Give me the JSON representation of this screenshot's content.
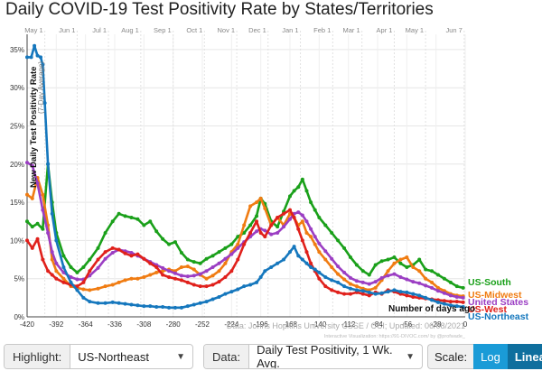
{
  "title": "Daily COVID-19 Test Positivity Rate by States/Territories",
  "chart_data": {
    "type": "line",
    "ylabel": "New Daily Test Positivity Rate",
    "ylabel_sub": "(7-Day Average)",
    "xlabel": "Number of days ago",
    "xlim": [
      -420,
      0
    ],
    "ylim": [
      0,
      37
    ],
    "grid": true,
    "x_ticks": [
      -420,
      -392,
      -364,
      -336,
      -308,
      -280,
      -252,
      -224,
      -196,
      -168,
      -140,
      -112,
      -84,
      -56,
      -28,
      0
    ],
    "x_tick_labels": [
      "-420",
      "-392",
      "-364",
      "-336",
      "-308",
      "-280",
      "-252",
      "-224",
      "-196",
      "-168",
      "-140",
      "-112",
      "-84",
      "-56",
      "-28",
      "0"
    ],
    "y_ticks": [
      0,
      5,
      10,
      15,
      20,
      25,
      30,
      35
    ],
    "y_tick_labels": [
      "0%",
      "5%",
      "10%",
      "15%",
      "20%",
      "25%",
      "30%",
      "35%"
    ],
    "month_markers": [
      {
        "label": "May 1",
        "x": -403
      },
      {
        "label": "Jun 1",
        "x": -372
      },
      {
        "label": "Jul 1",
        "x": -342
      },
      {
        "label": "Aug 1",
        "x": -311
      },
      {
        "label": "Sep 1",
        "x": -280
      },
      {
        "label": "Oct 1",
        "x": -250
      },
      {
        "label": "Nov 1",
        "x": -219
      },
      {
        "label": "Dec 1",
        "x": -189
      },
      {
        "label": "Jan 1",
        "x": -158
      },
      {
        "label": "Feb 1",
        "x": -127
      },
      {
        "label": "Mar 1",
        "x": -99
      },
      {
        "label": "Apr 1",
        "x": -68
      },
      {
        "label": "May 1",
        "x": -38
      },
      {
        "label": "Jun 7",
        "x": -1
      }
    ],
    "series": [
      {
        "name": "US-South",
        "color": "#1aa01a",
        "x": [
          -420,
          -415,
          -410,
          -405,
          -400,
          -396,
          -392,
          -385,
          -378,
          -372,
          -366,
          -360,
          -352,
          -345,
          -338,
          -332,
          -326,
          -320,
          -314,
          -308,
          -302,
          -296,
          -290,
          -284,
          -278,
          -272,
          -266,
          -260,
          -254,
          -248,
          -242,
          -236,
          -230,
          -224,
          -218,
          -212,
          -206,
          -200,
          -196,
          -192,
          -186,
          -180,
          -174,
          -168,
          -164,
          -160,
          -156,
          -152,
          -148,
          -144,
          -140,
          -134,
          -128,
          -122,
          -116,
          -110,
          -104,
          -98,
          -92,
          -86,
          -80,
          -74,
          -68,
          -62,
          -56,
          -50,
          -44,
          -38,
          -32,
          -26,
          -20,
          -14,
          -8,
          -2
        ],
        "y": [
          12.5,
          11.8,
          12.2,
          11.5,
          20.0,
          15.0,
          11.0,
          8.0,
          6.5,
          5.8,
          6.5,
          7.5,
          9.0,
          11.0,
          12.5,
          13.5,
          13.2,
          13.0,
          12.8,
          12.0,
          12.5,
          11.2,
          10.2,
          9.5,
          9.8,
          8.4,
          7.5,
          7.2,
          7.0,
          7.6,
          8.0,
          8.5,
          9.0,
          9.5,
          10.5,
          11.0,
          12.0,
          13.2,
          15.5,
          14.8,
          12.5,
          11.8,
          13.8,
          15.8,
          16.5,
          17.0,
          18.0,
          16.5,
          15.0,
          14.0,
          13.0,
          12.0,
          11.0,
          10.0,
          9.0,
          7.8,
          6.8,
          6.0,
          5.5,
          6.8,
          7.3,
          7.5,
          7.8,
          7.0,
          6.5,
          6.8,
          7.5,
          6.2,
          6.0,
          5.5,
          5.0,
          4.5,
          4.0,
          3.8
        ]
      },
      {
        "name": "US-Midwest",
        "color": "#f07c12",
        "x": [
          -420,
          -415,
          -410,
          -405,
          -400,
          -396,
          -392,
          -385,
          -378,
          -372,
          -366,
          -360,
          -352,
          -345,
          -338,
          -332,
          -326,
          -320,
          -314,
          -308,
          -302,
          -296,
          -290,
          -284,
          -278,
          -272,
          -266,
          -260,
          -254,
          -248,
          -242,
          -236,
          -230,
          -224,
          -218,
          -212,
          -206,
          -200,
          -196,
          -192,
          -186,
          -180,
          -174,
          -168,
          -164,
          -160,
          -156,
          -152,
          -148,
          -144,
          -140,
          -134,
          -128,
          -122,
          -116,
          -110,
          -104,
          -98,
          -92,
          -86,
          -80,
          -74,
          -68,
          -62,
          -56,
          -50,
          -44,
          -38,
          -32,
          -26,
          -20,
          -14,
          -8,
          -2
        ],
        "y": [
          16.0,
          15.5,
          18.2,
          16.0,
          12.0,
          7.5,
          6.0,
          5.0,
          4.0,
          3.8,
          3.6,
          3.5,
          3.7,
          4.0,
          4.2,
          4.5,
          4.8,
          5.0,
          5.0,
          5.2,
          5.5,
          5.8,
          6.0,
          6.2,
          6.0,
          6.5,
          6.6,
          6.2,
          5.5,
          5.0,
          5.4,
          6.0,
          7.0,
          8.5,
          9.5,
          12.0,
          14.5,
          15.0,
          15.5,
          14.2,
          12.0,
          13.0,
          12.0,
          13.5,
          13.0,
          12.0,
          12.5,
          11.0,
          10.5,
          9.5,
          8.5,
          7.5,
          6.5,
          5.6,
          4.9,
          4.3,
          4.0,
          3.7,
          3.5,
          3.8,
          4.8,
          6.0,
          7.0,
          7.5,
          7.8,
          6.5,
          6.0,
          5.0,
          4.5,
          3.8,
          3.4,
          3.0,
          2.8,
          2.7
        ]
      },
      {
        "name": "United States",
        "color": "#9b3ec3",
        "x": [
          -420,
          -415,
          -410,
          -405,
          -400,
          -396,
          -392,
          -385,
          -378,
          -372,
          -366,
          -360,
          -352,
          -345,
          -338,
          -332,
          -326,
          -320,
          -314,
          -308,
          -302,
          -296,
          -290,
          -284,
          -278,
          -272,
          -266,
          -260,
          -254,
          -248,
          -242,
          -236,
          -230,
          -224,
          -218,
          -212,
          -206,
          -200,
          -196,
          -192,
          -186,
          -180,
          -174,
          -168,
          -164,
          -160,
          -156,
          -152,
          -148,
          -144,
          -140,
          -134,
          -128,
          -122,
          -116,
          -110,
          -104,
          -98,
          -92,
          -86,
          -80,
          -74,
          -68,
          -62,
          -56,
          -50,
          -44,
          -38,
          -32,
          -26,
          -20,
          -14,
          -8,
          -2
        ],
        "y": [
          20.2,
          19.8,
          17.5,
          14.0,
          11.0,
          8.5,
          7.0,
          5.8,
          5.2,
          4.9,
          4.9,
          5.4,
          6.4,
          7.6,
          8.4,
          8.8,
          8.6,
          8.4,
          8.0,
          7.6,
          7.2,
          6.8,
          6.4,
          6.0,
          5.7,
          5.4,
          5.3,
          5.4,
          5.6,
          6.0,
          6.5,
          7.0,
          7.6,
          8.2,
          9.0,
          9.8,
          10.5,
          11.2,
          11.5,
          11.3,
          10.8,
          11.0,
          11.8,
          12.8,
          13.5,
          13.7,
          13.3,
          12.5,
          11.5,
          10.5,
          9.6,
          8.6,
          7.6,
          6.6,
          5.8,
          5.1,
          4.7,
          4.5,
          4.3,
          4.6,
          5.1,
          5.4,
          5.6,
          5.2,
          4.9,
          4.6,
          4.4,
          4.1,
          3.8,
          3.4,
          3.1,
          2.8,
          2.6,
          2.5
        ]
      },
      {
        "name": "US-West",
        "color": "#e0201b",
        "x": [
          -420,
          -415,
          -410,
          -405,
          -400,
          -396,
          -392,
          -385,
          -378,
          -372,
          -366,
          -360,
          -352,
          -345,
          -338,
          -332,
          -326,
          -320,
          -314,
          -308,
          -302,
          -296,
          -290,
          -284,
          -278,
          -272,
          -266,
          -260,
          -254,
          -248,
          -242,
          -236,
          -230,
          -224,
          -218,
          -212,
          -206,
          -200,
          -196,
          -192,
          -186,
          -180,
          -174,
          -168,
          -164,
          -160,
          -156,
          -152,
          -148,
          -144,
          -140,
          -134,
          -128,
          -122,
          -116,
          -110,
          -104,
          -98,
          -92,
          -86,
          -80,
          -74,
          -68,
          -62,
          -56,
          -50,
          -44,
          -38,
          -32,
          -26,
          -20,
          -14,
          -8,
          -2
        ],
        "y": [
          10.0,
          9.0,
          10.2,
          7.5,
          6.0,
          5.5,
          5.0,
          4.5,
          4.2,
          4.0,
          4.5,
          6.0,
          7.5,
          8.5,
          9.0,
          8.8,
          8.3,
          8.0,
          8.2,
          7.6,
          7.0,
          6.5,
          5.5,
          5.2,
          5.0,
          4.8,
          4.5,
          4.2,
          4.0,
          4.0,
          4.2,
          4.6,
          5.2,
          6.0,
          7.5,
          9.5,
          11.0,
          12.5,
          11.0,
          10.5,
          12.0,
          13.0,
          13.5,
          14.0,
          13.0,
          11.5,
          10.0,
          8.5,
          7.0,
          6.0,
          5.0,
          4.0,
          3.5,
          3.2,
          3.0,
          3.0,
          3.2,
          3.0,
          2.8,
          3.2,
          3.0,
          3.5,
          3.3,
          3.0,
          2.8,
          2.6,
          2.5,
          2.4,
          2.3,
          2.2,
          2.1,
          2.0,
          2.0,
          1.9
        ]
      },
      {
        "name": "US-Northeast",
        "color": "#1577bd",
        "x": [
          -420,
          -416,
          -413,
          -410,
          -407,
          -405,
          -403,
          -400,
          -396,
          -392,
          -385,
          -378,
          -372,
          -366,
          -360,
          -352,
          -345,
          -338,
          -332,
          -326,
          -320,
          -314,
          -308,
          -302,
          -296,
          -290,
          -284,
          -278,
          -272,
          -266,
          -260,
          -254,
          -248,
          -242,
          -236,
          -230,
          -224,
          -218,
          -212,
          -206,
          -200,
          -196,
          -192,
          -186,
          -180,
          -174,
          -168,
          -164,
          -160,
          -156,
          -152,
          -148,
          -144,
          -140,
          -134,
          -128,
          -122,
          -116,
          -110,
          -104,
          -98,
          -92,
          -86,
          -80,
          -74,
          -68,
          -62,
          -56,
          -50,
          -44,
          -38,
          -32,
          -26,
          -20,
          -14,
          -8,
          -2
        ],
        "y": [
          34.0,
          34.0,
          35.5,
          34.2,
          34.0,
          33.0,
          28.0,
          20.0,
          13.5,
          10.0,
          6.5,
          4.5,
          3.5,
          2.5,
          2.0,
          1.8,
          1.8,
          1.9,
          1.8,
          1.7,
          1.6,
          1.5,
          1.4,
          1.4,
          1.3,
          1.3,
          1.2,
          1.2,
          1.2,
          1.4,
          1.6,
          1.8,
          2.0,
          2.3,
          2.6,
          3.0,
          3.3,
          3.6,
          4.0,
          4.2,
          4.5,
          5.2,
          6.0,
          6.5,
          7.0,
          7.5,
          8.5,
          9.2,
          8.0,
          7.5,
          7.0,
          6.5,
          6.2,
          5.8,
          5.2,
          4.8,
          4.5,
          4.0,
          3.7,
          3.5,
          3.4,
          3.2,
          3.0,
          3.1,
          3.3,
          3.5,
          3.3,
          3.2,
          3.0,
          2.8,
          2.5,
          2.2,
          1.9,
          1.7,
          1.5,
          1.4,
          1.3
        ]
      }
    ],
    "source": "Data: Johns Hopkins University CSSE / CCI; Updated: 06/08/2021",
    "credit": "Interactive Visualization: https://91-DIVOC.com/ by @profwade_"
  },
  "controls": {
    "highlight_label": "Highlight:",
    "highlight_value": "US-Northeast",
    "data_label": "Data:",
    "data_value": "Daily Test Positivity, 1 Wk. Avg.",
    "scale_label": "Scale:",
    "scale_log": "Log",
    "scale_linear": "Linear"
  }
}
